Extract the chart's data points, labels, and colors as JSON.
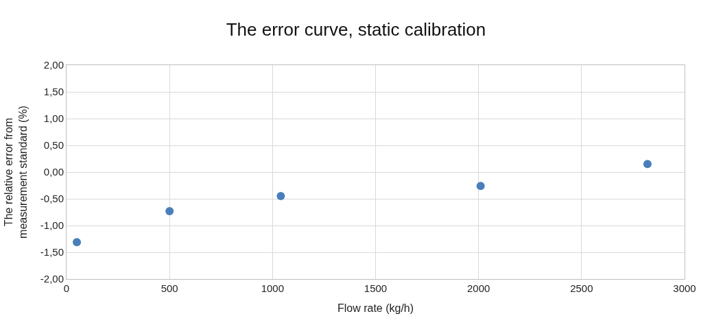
{
  "chart_data": {
    "type": "scatter",
    "title": "The error curve, static calibration",
    "xlabel": "Flow rate (kg/h)",
    "ylabel": "The relative error from measurement standard (%)",
    "x": [
      50,
      500,
      1040,
      2010,
      2820
    ],
    "series": [
      {
        "color": "#4a7ebb",
        "values": [
          -1.31,
          -0.73,
          -0.45,
          -0.26,
          0.15
        ]
      }
    ],
    "xlim": [
      0,
      3000
    ],
    "xticks": [
      0,
      500,
      1000,
      1500,
      2000,
      2500,
      3000
    ],
    "ylim": [
      -2,
      2
    ],
    "yticks": [
      {
        "value": -2,
        "label": "-2,00"
      },
      {
        "value": -1.5,
        "label": "-1,50"
      },
      {
        "value": -1,
        "label": "-1,00"
      },
      {
        "value": -0.5,
        "label": "-0,50"
      },
      {
        "value": 0,
        "label": "0,00"
      },
      {
        "value": 0.5,
        "label": "0,50"
      },
      {
        "value": 1,
        "label": "1,00"
      },
      {
        "value": 1.5,
        "label": "1,50"
      },
      {
        "value": 2,
        "label": "2,00"
      }
    ],
    "grid": true,
    "marker": "circle"
  }
}
